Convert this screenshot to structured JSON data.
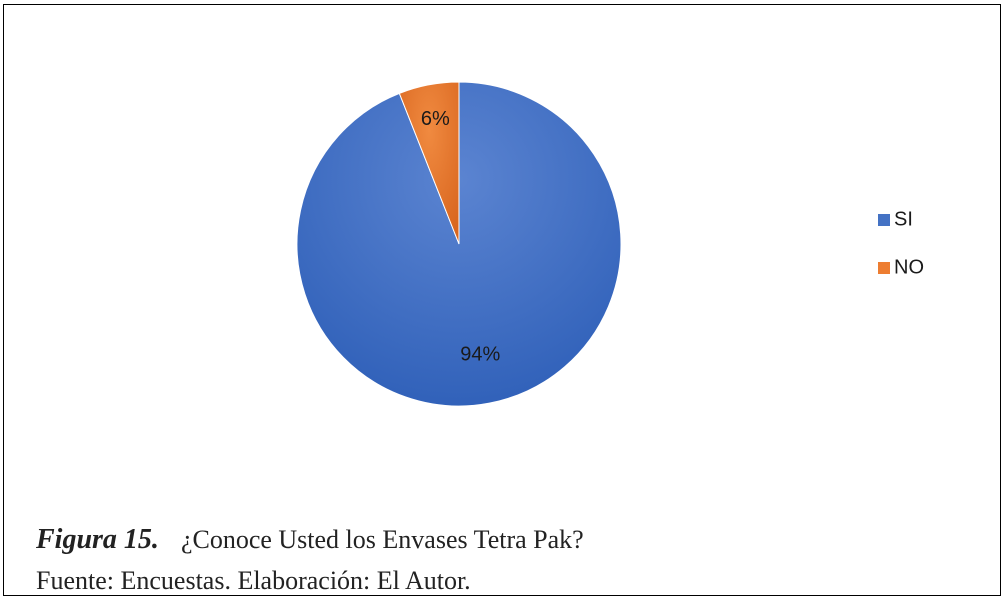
{
  "chart_data": {
    "type": "pie",
    "title": "",
    "slices": [
      {
        "label": "SI",
        "value": 94,
        "data_label": "94%",
        "color": "#4472C4"
      },
      {
        "label": "NO",
        "value": 6,
        "data_label": "6%",
        "color": "#ED7D31"
      }
    ],
    "start_angle_deg": 0,
    "direction": "clockwise",
    "legend_position": "right"
  },
  "caption": {
    "figure_label": "Figura 15.",
    "figure_title": "¿Conoce Usted los Envases Tetra Pak?",
    "source": "Fuente: Encuestas. Elaboración: El Autor."
  }
}
